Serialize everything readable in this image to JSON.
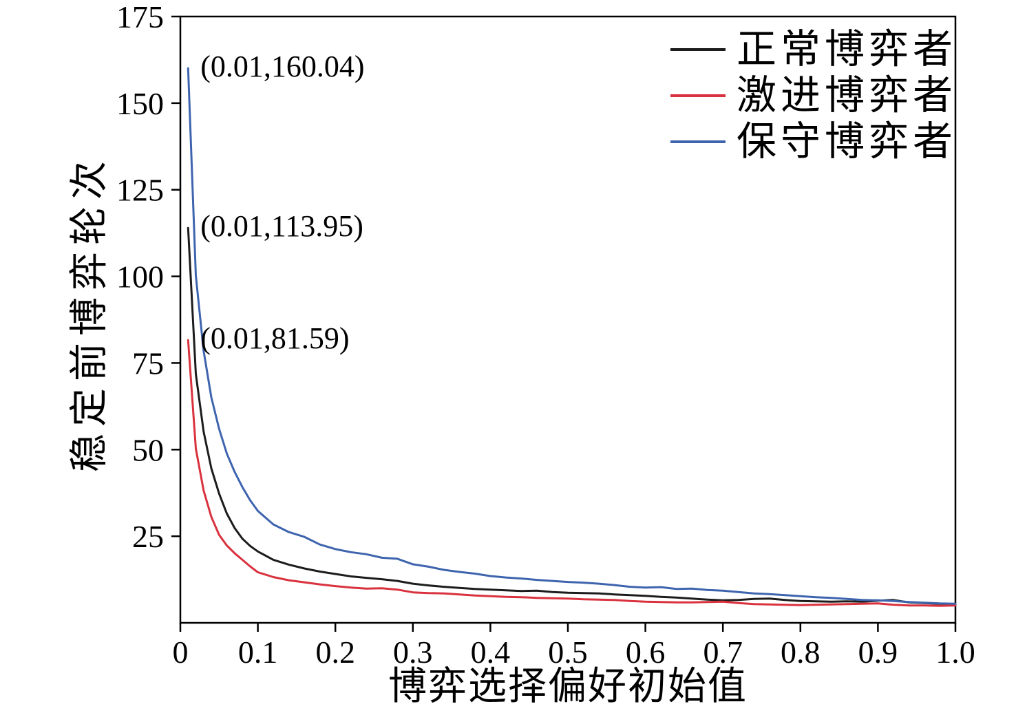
{
  "figure": {
    "background": "#ffffff",
    "axis_color": "#000000"
  },
  "chart_data": {
    "type": "line",
    "title": "",
    "xlabel": "博弈选择偏好初始值",
    "ylabel": "稳定前博弈轮次",
    "xlim": [
      0,
      1.0
    ],
    "ylim": [
      0,
      175
    ],
    "grid": false,
    "legend_position": "top-right",
    "x_tick_values": [
      0,
      0.1,
      0.2,
      0.3,
      0.4,
      0.5,
      0.6,
      0.7,
      0.8,
      0.9,
      1.0
    ],
    "x_tick_labels": [
      "0",
      "0.1",
      "0.2",
      "0.3",
      "0.4",
      "0.5",
      "0.6",
      "0.7",
      "0.8",
      "0.9",
      "1.0"
    ],
    "y_tick_values": [
      25,
      50,
      75,
      100,
      125,
      150,
      175
    ],
    "y_tick_labels": [
      "25",
      "50",
      "75",
      "100",
      "125",
      "150",
      "175"
    ],
    "x": [
      0.01,
      0.02,
      0.03,
      0.04,
      0.05,
      0.06,
      0.07,
      0.08,
      0.09,
      0.1,
      0.12,
      0.14,
      0.16,
      0.18,
      0.2,
      0.22,
      0.24,
      0.26,
      0.28,
      0.3,
      0.32,
      0.34,
      0.36,
      0.38,
      0.4,
      0.42,
      0.44,
      0.46,
      0.48,
      0.5,
      0.52,
      0.54,
      0.56,
      0.58,
      0.6,
      0.62,
      0.64,
      0.66,
      0.68,
      0.7,
      0.72,
      0.74,
      0.76,
      0.78,
      0.8,
      0.82,
      0.84,
      0.86,
      0.88,
      0.9,
      0.92,
      0.94,
      0.96,
      0.98,
      1.0
    ],
    "series": [
      {
        "name": "正常博弈者",
        "color": "#1c1c1c",
        "values": [
          113.95,
          71.8,
          55.2,
          44.6,
          37.3,
          31.5,
          27.4,
          24.3,
          22.2,
          20.6,
          18.2,
          16.8,
          15.7,
          14.8,
          14.1,
          13.4,
          13.0,
          12.6,
          12.1,
          11.3,
          10.8,
          10.4,
          10.1,
          9.8,
          9.6,
          9.4,
          9.2,
          9.3,
          8.9,
          8.7,
          8.6,
          8.5,
          8.2,
          8.0,
          7.8,
          7.5,
          7.3,
          7.0,
          6.7,
          6.5,
          6.6,
          6.9,
          7.0,
          6.6,
          6.3,
          6.2,
          6.1,
          6.2,
          6.1,
          6.4,
          6.6,
          5.9,
          5.7,
          5.5,
          5.4
        ]
      },
      {
        "name": "激进博弈者",
        "color": "#d9323e",
        "values": [
          81.59,
          50.3,
          38.2,
          30.6,
          25.4,
          22.3,
          20.1,
          18.2,
          16.3,
          14.6,
          13.2,
          12.3,
          11.7,
          11.1,
          10.6,
          10.2,
          9.9,
          10.0,
          9.6,
          8.8,
          8.6,
          8.5,
          8.2,
          7.9,
          7.7,
          7.5,
          7.4,
          7.2,
          7.1,
          7.0,
          6.8,
          6.7,
          6.6,
          6.3,
          6.1,
          6.0,
          5.9,
          5.9,
          6.0,
          6.1,
          5.7,
          5.4,
          5.3,
          5.2,
          5.1,
          5.2,
          5.3,
          5.4,
          5.5,
          5.6,
          5.2,
          5.0,
          5.0,
          4.9,
          5.0
        ]
      },
      {
        "name": "保守博弈者",
        "color": "#3e64ae",
        "values": [
          160.04,
          100.2,
          78.5,
          65.1,
          56.0,
          48.8,
          43.6,
          39.2,
          35.4,
          32.3,
          28.4,
          26.2,
          24.8,
          22.6,
          21.3,
          20.4,
          19.8,
          18.8,
          18.5,
          16.9,
          16.2,
          15.3,
          14.7,
          14.2,
          13.5,
          13.1,
          12.8,
          12.4,
          12.1,
          11.8,
          11.6,
          11.3,
          10.9,
          10.4,
          10.2,
          10.3,
          9.8,
          9.9,
          9.5,
          9.3,
          8.9,
          8.5,
          8.3,
          8.0,
          7.7,
          7.4,
          7.2,
          6.9,
          6.6,
          6.5,
          6.3,
          6.0,
          5.8,
          5.6,
          5.5
        ]
      }
    ],
    "annotations": [
      {
        "text": "(0.01,160.04)",
        "x": 0.01,
        "y": 160.04
      },
      {
        "text": "(0.01,113.95)",
        "x": 0.01,
        "y": 113.95
      },
      {
        "text": "(0.01,81.59)",
        "x": 0.01,
        "y": 81.59
      }
    ]
  }
}
